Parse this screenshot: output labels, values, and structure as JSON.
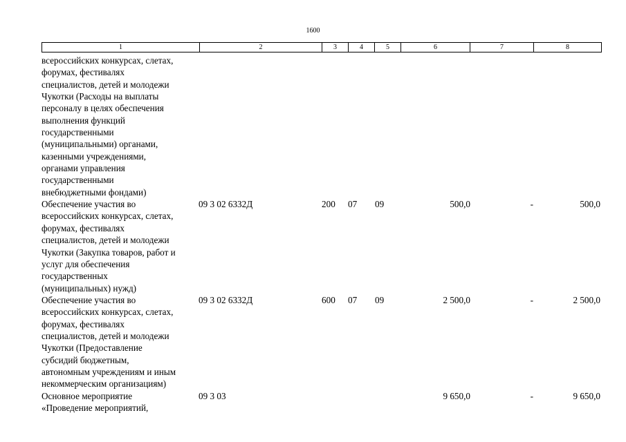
{
  "page_number": "1600",
  "header": [
    "1",
    "2",
    "3",
    "4",
    "5",
    "6",
    "7",
    "8"
  ],
  "rows": [
    {
      "desc": "всероссийских конкурсах, слетах,\nфорумах, фестивалях\nспециалистов, детей и молодежи\nЧукотки (Расходы на выплаты\nперсоналу в целях обеспечения\nвыполнения функций\nгосударственными\n(муниципальными) органами,\nказенными учреждениями,\nорганами управления\nгосударственными\nвнебюджетными фондами)",
      "code": "",
      "vr": "",
      "rz": "",
      "pr": "",
      "sum": "",
      "change": "",
      "total": ""
    },
    {
      "desc": "Обеспечение участия во\nвсероссийских конкурсах, слетах,\nфорумах, фестивалях\nспециалистов, детей и молодежи\nЧукотки (Закупка товаров, работ и\nуслуг для обеспечения\nгосударственных\n(муниципальных) нужд)",
      "code": "09 3 02 6332Д",
      "vr": "200",
      "rz": "07",
      "pr": "09",
      "sum": "500,0",
      "change": "-",
      "total": "500,0"
    },
    {
      "desc": "Обеспечение участия во\nвсероссийских конкурсах, слетах,\nфорумах, фестивалях\nспециалистов, детей и молодежи\nЧукотки (Предоставление\nсубсидий бюджетным,\nавтономным учреждениям и иным\nнекоммерческим организациям)",
      "code": "09 3 02 6332Д",
      "vr": "600",
      "rz": "07",
      "pr": "09",
      "sum": "2 500,0",
      "change": "-",
      "total": "2 500,0"
    },
    {
      "desc": "Основное мероприятие\n«Проведение мероприятий,",
      "code": "09 3 03",
      "vr": "",
      "rz": "",
      "pr": "",
      "sum": "9 650,0",
      "change": "-",
      "total": "9 650,0"
    }
  ]
}
